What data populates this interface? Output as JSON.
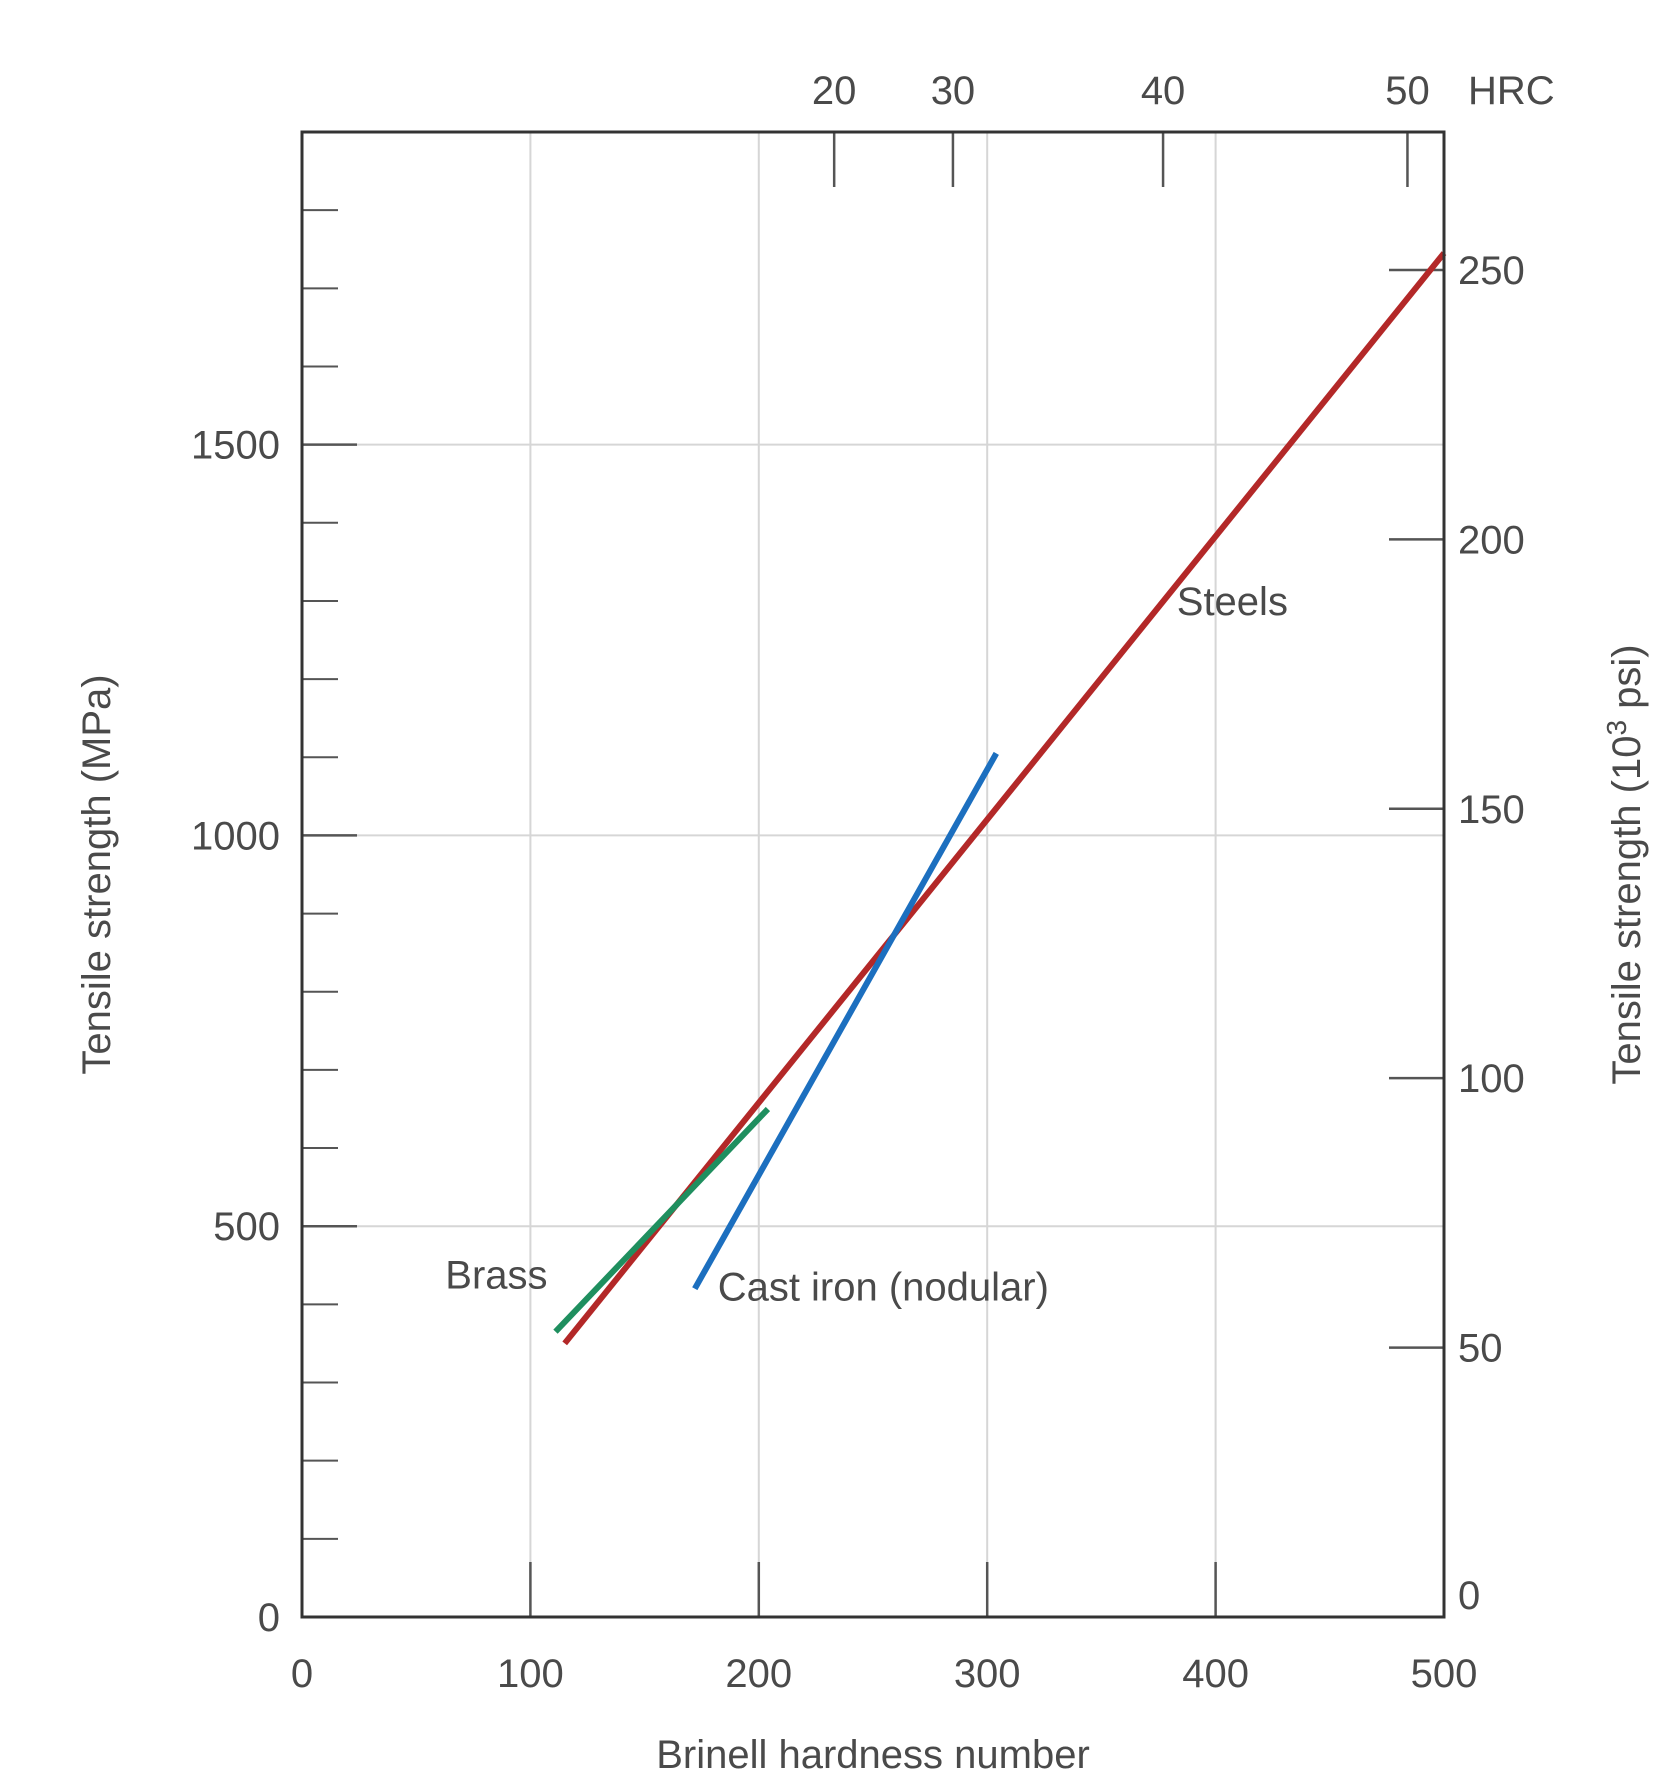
{
  "chart_data": {
    "type": "line",
    "xlabel": "Brinell hardness number",
    "ylabel": "Tensile strength (MPa)",
    "y2label_main": "Tensile strength (10",
    "y2label_sup": "3",
    "y2label_end": " psi)",
    "x2label": "HRC",
    "xlim": [
      0,
      500
    ],
    "ylim": [
      0,
      1900
    ],
    "y2lim": [
      0,
      275.6
    ],
    "grid": true,
    "x_ticks": [
      "0",
      "100",
      "200",
      "300",
      "400",
      "500"
    ],
    "y_ticks": [
      "0",
      "500",
      "1000",
      "1500"
    ],
    "y2_ticks": [
      "0",
      "50",
      "100",
      "150",
      "200",
      "250"
    ],
    "x2_ticks": [
      {
        "label": "20",
        "brinell": 233
      },
      {
        "label": "30",
        "brinell": 285
      },
      {
        "label": "40",
        "brinell": 377
      },
      {
        "label": "50",
        "brinell": 484
      }
    ],
    "series": [
      {
        "name": "Steels",
        "color": "#b32828",
        "points": [
          [
            115,
            350
          ],
          [
            500,
            1745
          ]
        ]
      },
      {
        "name": "Cast iron (nodular)",
        "color": "#1c6fbf",
        "points": [
          [
            172,
            420
          ],
          [
            304,
            1105
          ]
        ]
      },
      {
        "name": "Brass",
        "color": "#1f8f5f",
        "points": [
          [
            111,
            365
          ],
          [
            204,
            650
          ]
        ]
      }
    ]
  }
}
